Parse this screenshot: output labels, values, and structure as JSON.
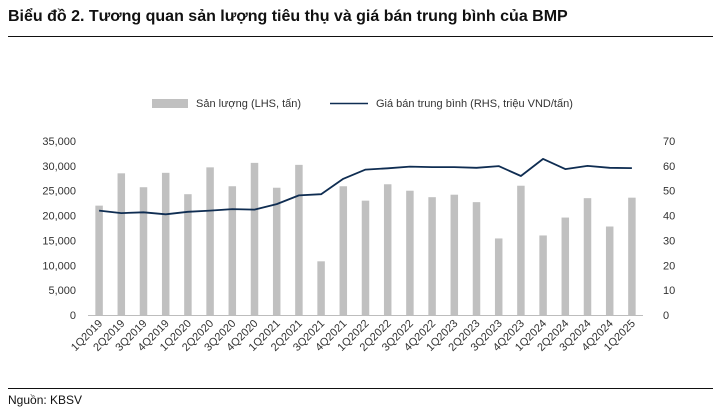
{
  "title": "Biểu đồ 2. Tương quan sản lượng tiêu thụ và giá bán trung bình của BMP",
  "source": "Nguồn: KBSV",
  "colors": {
    "bar": "#c0c0c0",
    "line": "#0f2d52",
    "text": "#333333"
  },
  "chart_data": {
    "type": "bar",
    "categories": [
      "1Q2019",
      "2Q2019",
      "3Q2019",
      "4Q2019",
      "1Q2020",
      "2Q2020",
      "3Q2020",
      "4Q2020",
      "1Q2021",
      "2Q2021",
      "3Q2021",
      "4Q2021",
      "1Q2022",
      "2Q2022",
      "3Q2022",
      "4Q2022",
      "1Q2023",
      "2Q2023",
      "3Q2023",
      "4Q2023",
      "1Q2024",
      "2Q2024",
      "3Q2024",
      "4Q2024",
      "1Q2025"
    ],
    "series": [
      {
        "name": "Sản lượng (LHS, tấn)",
        "type": "bar",
        "axis": "left",
        "values": [
          22000,
          28500,
          25700,
          28600,
          24300,
          29700,
          25900,
          30600,
          25600,
          30200,
          10800,
          25900,
          23000,
          26300,
          25000,
          23700,
          24200,
          22700,
          15400,
          26000,
          16000,
          19600,
          23500,
          17800,
          23600
        ]
      },
      {
        "name": "Giá bán trung bình (RHS, triệu VND/tấn)",
        "type": "line",
        "axis": "right",
        "values": [
          42.0,
          41.0,
          41.3,
          40.5,
          41.5,
          42.0,
          42.6,
          42.4,
          44.6,
          48.1,
          48.6,
          54.8,
          58.5,
          59.0,
          59.7,
          59.5,
          59.5,
          59.2,
          59.9,
          55.9,
          62.8,
          58.7,
          60.0,
          59.2,
          59.1
        ]
      }
    ],
    "y_left": {
      "ylim": [
        0,
        35000
      ],
      "ticks": [
        "0",
        "5,000",
        "10,000",
        "15,000",
        "20,000",
        "25,000",
        "30,000",
        "35,000"
      ]
    },
    "y_right": {
      "ylim": [
        0,
        70
      ],
      "ticks": [
        "0",
        "10",
        "20",
        "30",
        "40",
        "50",
        "60",
        "70"
      ]
    },
    "title": "",
    "xlabel": "",
    "ylabel": "",
    "legend": "top-center"
  }
}
